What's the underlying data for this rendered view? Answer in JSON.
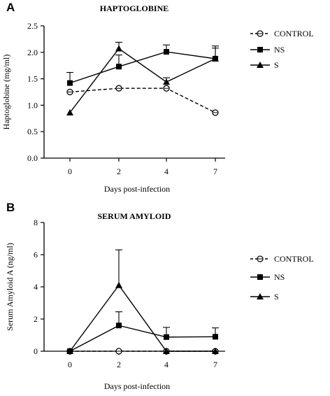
{
  "chart_data": [
    {
      "panel": "A",
      "type": "line",
      "title": "HAPTOGLOBINE",
      "xlabel": "Days post-infection",
      "ylabel": "Haptoglobine (mg/ml)",
      "categories": [
        "0",
        "2",
        "4",
        "7"
      ],
      "ylim": [
        0,
        2.5
      ],
      "yticks": [
        "0.0",
        "0.5",
        "1.0",
        "1.5",
        "2.0",
        "2.5"
      ],
      "grid": false,
      "legend_position": "right",
      "series": [
        {
          "name": "CONTROL",
          "marker": "open-circle",
          "dash": "dashed",
          "values": [
            1.25,
            1.32,
            1.32,
            0.86
          ],
          "errors": [
            0,
            0,
            0,
            0
          ]
        },
        {
          "name": "NS",
          "marker": "square",
          "dash": "solid",
          "values": [
            1.42,
            1.73,
            2.01,
            1.88
          ],
          "errors": [
            0.2,
            0.22,
            0.13,
            0.24
          ]
        },
        {
          "name": "S",
          "marker": "triangle",
          "dash": "solid",
          "values": [
            0.86,
            2.07,
            1.44,
            1.88
          ],
          "errors": [
            0,
            0.12,
            0.08,
            0.2
          ]
        }
      ]
    },
    {
      "panel": "B",
      "type": "line",
      "title": "SERUM AMYLOID",
      "xlabel": "Days post-infection",
      "ylabel": "Serum Amyloid A (ng/ml)",
      "categories": [
        "0",
        "2",
        "4",
        "7"
      ],
      "ylim": [
        0,
        8
      ],
      "yticks": [
        "0",
        "2",
        "4",
        "6",
        "8"
      ],
      "grid": false,
      "legend_position": "right",
      "series": [
        {
          "name": "CONTROL",
          "marker": "open-circle",
          "dash": "dashed",
          "values": [
            0,
            0,
            0,
            0
          ],
          "errors": [
            0,
            0,
            0,
            0
          ]
        },
        {
          "name": "NS",
          "marker": "square",
          "dash": "solid",
          "values": [
            0,
            1.6,
            0.88,
            0.9
          ],
          "errors": [
            0,
            0.85,
            0.6,
            0.55
          ]
        },
        {
          "name": "S",
          "marker": "triangle",
          "dash": "solid",
          "values": [
            0,
            4.1,
            0,
            0
          ],
          "errors": [
            0,
            2.2,
            0,
            0
          ]
        }
      ]
    }
  ]
}
